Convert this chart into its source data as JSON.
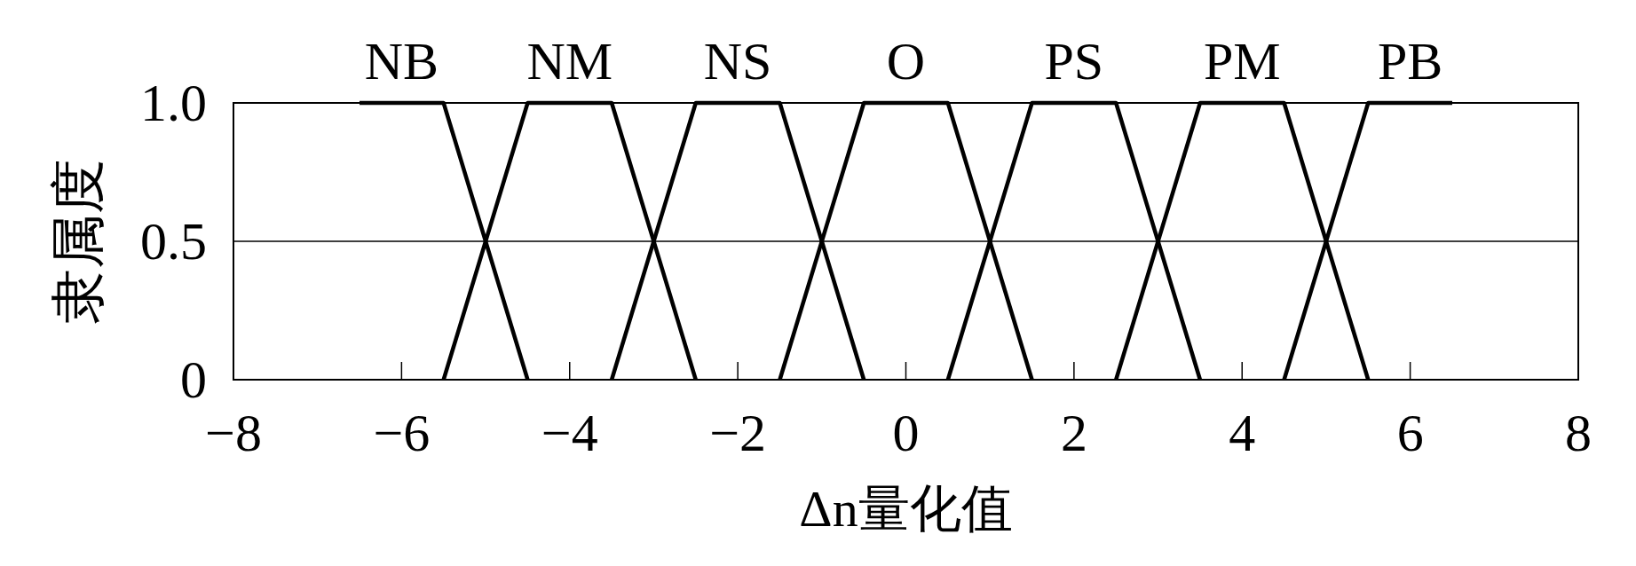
{
  "chart_data": {
    "type": "line",
    "xlabel": "Δn量化值",
    "ylabel": "隶属度",
    "xlim": [
      -8,
      8
    ],
    "ylim": [
      0,
      1
    ],
    "xticks": [
      {
        "value": -8,
        "label": "−8"
      },
      {
        "value": -6,
        "label": "−6"
      },
      {
        "value": -4,
        "label": "−4"
      },
      {
        "value": -2,
        "label": "−2"
      },
      0,
      2,
      4,
      6,
      8
    ],
    "yticks": [
      0,
      0.5,
      {
        "value": 1,
        "label": "1.0"
      }
    ],
    "grid": "y",
    "line_style": "solid",
    "series": [
      {
        "name": "NB",
        "color": "#000000",
        "x": [
          -6.5,
          -5.5,
          -4.5
        ],
        "values": [
          1,
          1,
          0
        ]
      },
      {
        "name": "NM",
        "color": "#000000",
        "x": [
          -5.5,
          -4.5,
          -3.5,
          -2.5
        ],
        "values": [
          0,
          1,
          1,
          0
        ]
      },
      {
        "name": "NS",
        "color": "#000000",
        "x": [
          -3.5,
          -2.5,
          -1.5,
          -0.5
        ],
        "values": [
          0,
          1,
          1,
          0
        ]
      },
      {
        "name": "O",
        "color": "#000000",
        "x": [
          -1.5,
          -0.5,
          0.5,
          1.5
        ],
        "values": [
          0,
          1,
          1,
          0
        ]
      },
      {
        "name": "PS",
        "color": "#000000",
        "x": [
          0.5,
          1.5,
          2.5,
          3.5
        ],
        "values": [
          0,
          1,
          1,
          0
        ]
      },
      {
        "name": "PM",
        "color": "#000000",
        "x": [
          2.5,
          3.5,
          4.5,
          5.5
        ],
        "values": [
          0,
          1,
          1,
          0
        ]
      },
      {
        "name": "PB",
        "color": "#000000",
        "x": [
          4.5,
          5.5,
          6.5
        ],
        "values": [
          0,
          1,
          1
        ]
      }
    ]
  }
}
